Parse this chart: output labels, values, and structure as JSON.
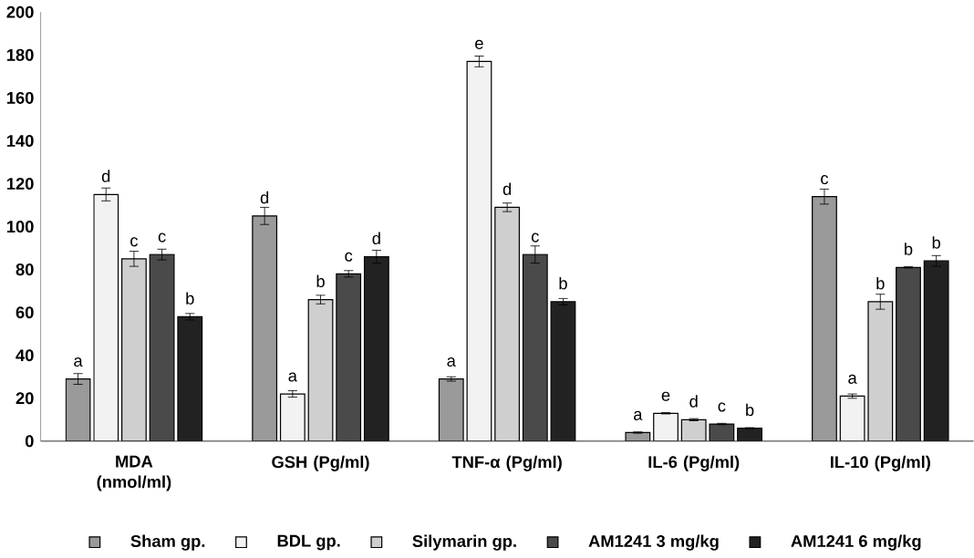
{
  "chart_data": {
    "type": "bar",
    "categories": [
      "MDA (nmol/ml)",
      "GSH (Pg/ml)",
      "TNF-α (Pg/ml)",
      "IL-6 (Pg/ml)",
      "IL-10 (Pg/ml)"
    ],
    "series": [
      {
        "name": "Sham gp.",
        "color": "#9a9a9a",
        "values": [
          29,
          105,
          29,
          4,
          114
        ],
        "errors": [
          2.5,
          4,
          1,
          0.3,
          3.5
        ],
        "value_labels": [
          "a",
          "d",
          "a",
          "a",
          "c"
        ]
      },
      {
        "name": "BDL gp.",
        "color": "#f2f2f2",
        "values": [
          115,
          22,
          177,
          13,
          21
        ],
        "errors": [
          3,
          1.5,
          2.5,
          0.3,
          1
        ],
        "value_labels": [
          "d",
          "a",
          "e",
          "e",
          "a"
        ]
      },
      {
        "name": "Silymarin gp.",
        "color": "#cfcfcf",
        "values": [
          85,
          66,
          109,
          10,
          65
        ],
        "errors": [
          3.5,
          2,
          2,
          0.5,
          3.5
        ],
        "value_labels": [
          "c",
          "b",
          "d",
          "d",
          "b"
        ]
      },
      {
        "name": "AM1241 3 mg/kg",
        "color": "#4a4a4a",
        "values": [
          87,
          78,
          87,
          8,
          81
        ],
        "errors": [
          2.5,
          1.5,
          4,
          0.3,
          0.3
        ],
        "value_labels": [
          "c",
          "c",
          "c",
          "c",
          "b"
        ]
      },
      {
        "name": "AM1241 6 mg/kg",
        "color": "#222222",
        "values": [
          58,
          86,
          65,
          6,
          84
        ],
        "errors": [
          1.5,
          3,
          1.5,
          0.3,
          2.5
        ],
        "value_labels": [
          "b",
          "d",
          "b",
          "b",
          "b"
        ]
      }
    ],
    "ylim": [
      0,
      200
    ],
    "yticks": [
      0,
      20,
      40,
      60,
      80,
      100,
      120,
      140,
      160,
      180,
      200
    ],
    "grid": false,
    "legend": "bottom"
  }
}
